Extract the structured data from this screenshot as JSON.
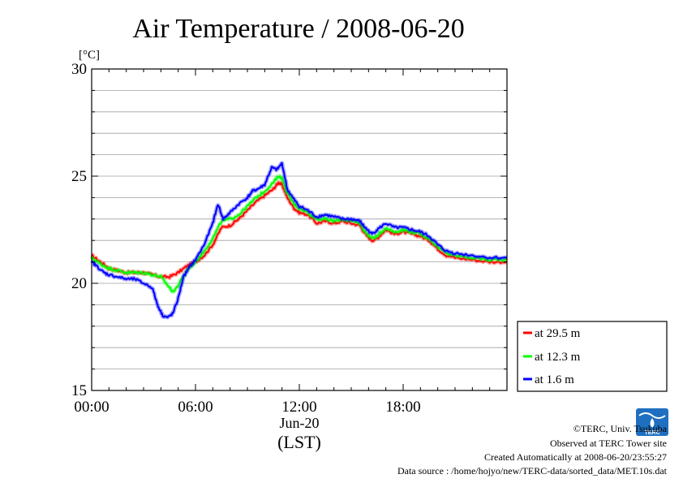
{
  "chart_data": {
    "type": "line",
    "title": "Air Temperature / 2008-06-20",
    "ylabel": "[°C]",
    "xlabel": "(LST)",
    "date_label": "Jun-20",
    "ylim": [
      15,
      30
    ],
    "yticks": [
      "15",
      "20",
      "25",
      "30"
    ],
    "xlim": [
      0,
      24
    ],
    "xtick_labels": [
      "00:00",
      "06:00",
      "12:00",
      "18:00"
    ],
    "grid": true,
    "legend_position": "bottom-right, outside plot",
    "series": [
      {
        "name": "at 29.5 m",
        "color": "#ff0000",
        "x": [
          0,
          0.5,
          1,
          1.5,
          2,
          2.5,
          3,
          3.5,
          4,
          4.5,
          5,
          5.5,
          6,
          6.5,
          7,
          7.5,
          8,
          8.5,
          9,
          9.5,
          10,
          10.5,
          10.8,
          11,
          11.3,
          11.7,
          12,
          12.5,
          13,
          13.5,
          14,
          14.5,
          15,
          15.5,
          15.8,
          16.2,
          16.5,
          17,
          17.5,
          18,
          18.5,
          19,
          19.5,
          20,
          20.5,
          21,
          22,
          23,
          24
        ],
        "y": [
          21.3,
          21.0,
          20.7,
          20.6,
          20.5,
          20.5,
          20.5,
          20.4,
          20.3,
          20.3,
          20.5,
          20.8,
          21.0,
          21.3,
          21.8,
          22.6,
          22.7,
          23.0,
          23.4,
          23.8,
          24.1,
          24.4,
          24.7,
          24.6,
          24.0,
          23.5,
          23.3,
          23.2,
          22.8,
          22.9,
          22.8,
          22.9,
          22.8,
          22.7,
          22.3,
          22.0,
          22.1,
          22.5,
          22.3,
          22.4,
          22.3,
          22.2,
          22.0,
          21.6,
          21.3,
          21.2,
          21.1,
          21.0,
          21.0
        ]
      },
      {
        "name": "at 12.3 m",
        "color": "#00ff00",
        "x": [
          0,
          0.5,
          1,
          1.5,
          2,
          2.5,
          3,
          3.5,
          4,
          4.4,
          4.7,
          5,
          5.5,
          6,
          6.5,
          7,
          7.5,
          8,
          8.5,
          9,
          9.5,
          10,
          10.5,
          10.8,
          11,
          11.3,
          11.7,
          12,
          12.5,
          13,
          13.5,
          14,
          14.5,
          15,
          15.5,
          15.8,
          16.2,
          16.5,
          17,
          17.5,
          18,
          18.5,
          19,
          19.5,
          20,
          20.5,
          21,
          22,
          23,
          24
        ],
        "y": [
          21.2,
          20.9,
          20.7,
          20.6,
          20.5,
          20.5,
          20.5,
          20.4,
          20.3,
          19.9,
          19.6,
          19.9,
          20.6,
          21.0,
          21.5,
          22.1,
          22.9,
          23.0,
          23.2,
          23.6,
          24.0,
          24.3,
          24.7,
          25.0,
          24.9,
          24.2,
          23.7,
          23.5,
          23.3,
          23.0,
          23.0,
          22.9,
          23.0,
          22.9,
          22.8,
          22.4,
          22.1,
          22.2,
          22.6,
          22.4,
          22.5,
          22.4,
          22.3,
          22.1,
          21.7,
          21.4,
          21.3,
          21.2,
          21.1,
          21.1
        ]
      },
      {
        "name": "at 1.6 m",
        "color": "#0000ff",
        "x": [
          0,
          0.3,
          0.7,
          1,
          1.5,
          2,
          2.5,
          3,
          3.5,
          3.8,
          4.1,
          4.4,
          4.7,
          5,
          5.3,
          5.7,
          6,
          6.5,
          7,
          7.3,
          7.6,
          8,
          8.5,
          9,
          9.3,
          9.6,
          10,
          10.4,
          10.7,
          11,
          11.3,
          11.7,
          12,
          12.5,
          13,
          13.5,
          14,
          14.5,
          15,
          15.5,
          15.8,
          16.2,
          16.5,
          17,
          17.5,
          18,
          18.5,
          19,
          19.5,
          20,
          20.5,
          21,
          22,
          23,
          24
        ],
        "y": [
          21.0,
          20.8,
          20.5,
          20.4,
          20.3,
          20.2,
          20.2,
          20.0,
          19.8,
          19.0,
          18.5,
          18.4,
          18.6,
          19.3,
          20.3,
          20.8,
          21.1,
          21.8,
          22.8,
          23.7,
          23.0,
          23.3,
          23.7,
          24.0,
          24.3,
          24.4,
          24.6,
          25.4,
          25.3,
          25.6,
          24.4,
          23.9,
          23.6,
          23.4,
          23.1,
          23.2,
          23.1,
          23.0,
          23.0,
          22.9,
          22.6,
          22.3,
          22.5,
          22.8,
          22.6,
          22.6,
          22.5,
          22.4,
          22.2,
          21.8,
          21.5,
          21.4,
          21.3,
          21.2,
          21.2
        ]
      }
    ]
  },
  "credits": {
    "copyright": "©TERC, Univ. Tsukuba",
    "observed": "Observed at TERC Tower site",
    "created": "Created Automatically at 2008-06-20/23:55:27",
    "source": "Data source : /home/hojyo/new/TERC-data/sorted_data/MET.10s.dat",
    "logo_text": "TERC"
  },
  "colors": {
    "axis": "#000000",
    "grid": "#a0a0a0",
    "logo": "#1f6fc0"
  }
}
